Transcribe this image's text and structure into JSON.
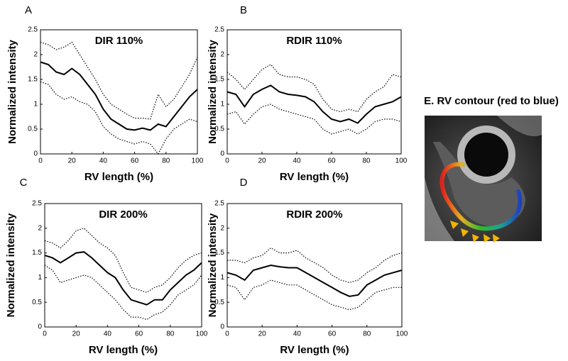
{
  "chart_data": [
    {
      "type": "line",
      "panel": "A",
      "title": "DIR 110%",
      "xlabel": "RV length (%)",
      "ylabel": "Normalized intensity",
      "x": [
        0,
        5,
        10,
        15,
        20,
        25,
        30,
        35,
        40,
        45,
        50,
        55,
        60,
        65,
        70,
        75,
        80,
        85,
        90,
        95,
        100
      ],
      "series": [
        {
          "color": "#000000",
          "style": "solid",
          "values": [
            1.85,
            1.8,
            1.65,
            1.6,
            1.72,
            1.6,
            1.4,
            1.2,
            0.9,
            0.7,
            0.6,
            0.5,
            0.48,
            0.52,
            0.48,
            0.6,
            0.55,
            0.75,
            0.95,
            1.15,
            1.3
          ]
        },
        {
          "color": "#000000",
          "style": "dotted",
          "values": [
            2.25,
            2.2,
            2.1,
            2.15,
            2.25,
            2.0,
            1.75,
            1.5,
            1.2,
            1.0,
            0.9,
            0.8,
            0.72,
            0.72,
            0.7,
            1.2,
            0.95,
            1.1,
            1.35,
            1.6,
            1.95
          ]
        },
        {
          "color": "#000000",
          "style": "dotted",
          "values": [
            1.45,
            1.4,
            1.2,
            1.1,
            1.15,
            1.05,
            1.0,
            0.85,
            0.55,
            0.4,
            0.3,
            0.25,
            0.2,
            0.25,
            0.2,
            0.0,
            0.3,
            0.5,
            0.6,
            0.7,
            0.65
          ]
        }
      ],
      "xlim": [
        0,
        100
      ],
      "ylim": [
        0,
        2.5
      ],
      "xticks": [
        0,
        20,
        40,
        60,
        80,
        100
      ],
      "yticks": [
        0,
        0.5,
        1,
        1.5,
        2,
        2.5
      ]
    },
    {
      "type": "line",
      "panel": "B",
      "title": "RDIR 110%",
      "xlabel": "RV length (%)",
      "ylabel": "Normalized intensity",
      "x": [
        0,
        5,
        10,
        15,
        20,
        25,
        30,
        35,
        40,
        45,
        50,
        55,
        60,
        65,
        70,
        75,
        80,
        85,
        90,
        95,
        100
      ],
      "series": [
        {
          "color": "#000000",
          "style": "solid",
          "values": [
            1.25,
            1.2,
            0.95,
            1.2,
            1.3,
            1.38,
            1.25,
            1.2,
            1.18,
            1.15,
            1.05,
            0.85,
            0.7,
            0.65,
            0.7,
            0.62,
            0.8,
            0.95,
            1.0,
            1.05,
            1.15
          ]
        },
        {
          "color": "#000000",
          "style": "dotted",
          "values": [
            1.65,
            1.5,
            1.3,
            1.5,
            1.7,
            1.8,
            1.6,
            1.55,
            1.55,
            1.5,
            1.4,
            1.1,
            0.9,
            0.85,
            0.9,
            0.85,
            1.1,
            1.25,
            1.35,
            1.6,
            1.55
          ]
        },
        {
          "color": "#000000",
          "style": "dotted",
          "values": [
            0.8,
            0.85,
            0.6,
            0.8,
            0.95,
            1.0,
            0.9,
            0.85,
            0.8,
            0.75,
            0.7,
            0.5,
            0.4,
            0.45,
            0.5,
            0.4,
            0.5,
            0.65,
            0.7,
            0.7,
            0.65
          ]
        }
      ],
      "xlim": [
        0,
        100
      ],
      "ylim": [
        0,
        2.5
      ],
      "xticks": [
        0,
        20,
        40,
        60,
        80,
        100
      ],
      "yticks": [
        0,
        0.5,
        1,
        1.5,
        2,
        2.5
      ]
    },
    {
      "type": "line",
      "panel": "C",
      "title": "DIR 200%",
      "xlabel": "RV length (%)",
      "ylabel": "Normalized intensity",
      "x": [
        0,
        5,
        10,
        15,
        20,
        25,
        30,
        35,
        40,
        45,
        50,
        55,
        60,
        65,
        70,
        75,
        80,
        85,
        90,
        95,
        100
      ],
      "series": [
        {
          "color": "#000000",
          "style": "solid",
          "values": [
            1.45,
            1.4,
            1.3,
            1.4,
            1.5,
            1.52,
            1.4,
            1.25,
            1.1,
            1.0,
            0.75,
            0.55,
            0.5,
            0.45,
            0.55,
            0.55,
            0.75,
            0.9,
            1.05,
            1.15,
            1.3
          ]
        },
        {
          "color": "#000000",
          "style": "dotted",
          "values": [
            1.75,
            1.7,
            1.6,
            1.75,
            1.95,
            2.0,
            1.85,
            1.7,
            1.6,
            1.45,
            1.1,
            0.8,
            0.75,
            0.7,
            0.8,
            0.85,
            1.0,
            1.2,
            1.35,
            1.45,
            1.5
          ]
        },
        {
          "color": "#000000",
          "style": "dotted",
          "values": [
            1.25,
            1.15,
            0.9,
            0.95,
            1.0,
            1.05,
            1.0,
            0.85,
            0.7,
            0.55,
            0.35,
            0.2,
            0.2,
            0.15,
            0.25,
            0.3,
            0.45,
            0.65,
            0.75,
            0.85,
            1.05
          ]
        }
      ],
      "xlim": [
        0,
        100
      ],
      "ylim": [
        0,
        2.5
      ],
      "xticks": [
        0,
        20,
        40,
        60,
        80,
        100
      ],
      "yticks": [
        0,
        0.5,
        1,
        1.5,
        2,
        2.5
      ]
    },
    {
      "type": "line",
      "panel": "D",
      "title": "RDIR 200%",
      "xlabel": "RV length (%)",
      "ylabel": "Normalized intensity",
      "x": [
        0,
        5,
        10,
        15,
        20,
        25,
        30,
        35,
        40,
        45,
        50,
        55,
        60,
        65,
        70,
        75,
        80,
        85,
        90,
        95,
        100
      ],
      "series": [
        {
          "color": "#000000",
          "style": "solid",
          "values": [
            1.1,
            1.05,
            0.95,
            1.15,
            1.2,
            1.25,
            1.22,
            1.2,
            1.2,
            1.1,
            1.0,
            0.9,
            0.8,
            0.7,
            0.62,
            0.65,
            0.85,
            0.95,
            1.05,
            1.1,
            1.15
          ]
        },
        {
          "color": "#000000",
          "style": "dotted",
          "values": [
            1.35,
            1.35,
            1.3,
            1.4,
            1.45,
            1.6,
            1.5,
            1.5,
            1.55,
            1.4,
            1.3,
            1.2,
            1.05,
            0.95,
            0.9,
            0.95,
            1.1,
            1.2,
            1.35,
            1.45,
            1.5
          ]
        },
        {
          "color": "#000000",
          "style": "dotted",
          "values": [
            0.85,
            0.8,
            0.55,
            0.8,
            0.85,
            0.95,
            0.9,
            0.85,
            0.85,
            0.75,
            0.65,
            0.55,
            0.45,
            0.4,
            0.35,
            0.4,
            0.55,
            0.7,
            0.75,
            0.8,
            0.8
          ]
        }
      ],
      "xlim": [
        0,
        100
      ],
      "ylim": [
        0,
        2.5
      ],
      "xticks": [
        0,
        20,
        40,
        60,
        80,
        100
      ],
      "yticks": [
        0,
        0.5,
        1,
        1.5,
        2,
        2.5
      ]
    }
  ],
  "image_panel": {
    "title": "E. RV contour (red to blue)"
  }
}
